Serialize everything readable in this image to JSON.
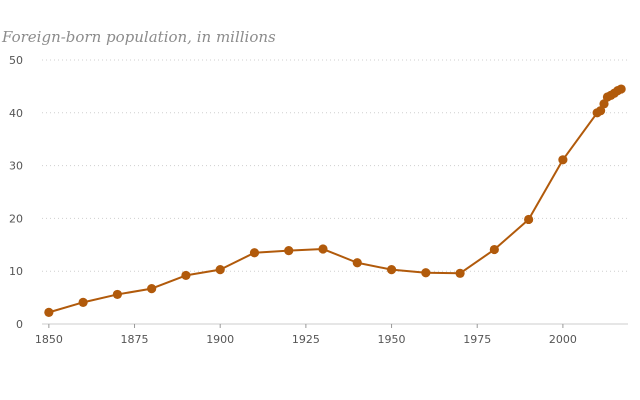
{
  "chart_data": {
    "type": "line",
    "title": "Foreign-born population, in millions",
    "xlabel": "",
    "ylabel": "",
    "xlim": [
      1848,
      2019
    ],
    "ylim": [
      0,
      50
    ],
    "x_ticks": [
      1850,
      1875,
      1900,
      1925,
      1950,
      1975,
      2000
    ],
    "y_ticks": [
      0,
      10,
      20,
      30,
      40,
      50
    ],
    "grid": true,
    "series": [
      {
        "color": "#b15a0b",
        "x": [
          1850,
          1860,
          1870,
          1880,
          1890,
          1900,
          1910,
          1920,
          1930,
          1940,
          1950,
          1960,
          1970,
          1980,
          1990,
          2000,
          2010,
          2011,
          2012,
          2013,
          2014,
          2015,
          2016,
          2017
        ],
        "y": [
          2.2,
          4.1,
          5.6,
          6.7,
          9.2,
          10.3,
          13.5,
          13.9,
          14.2,
          11.6,
          10.3,
          9.7,
          9.6,
          14.1,
          19.8,
          31.1,
          40.0,
          40.4,
          41.7,
          43.0,
          43.3,
          43.7,
          44.2,
          44.5
        ]
      }
    ]
  }
}
